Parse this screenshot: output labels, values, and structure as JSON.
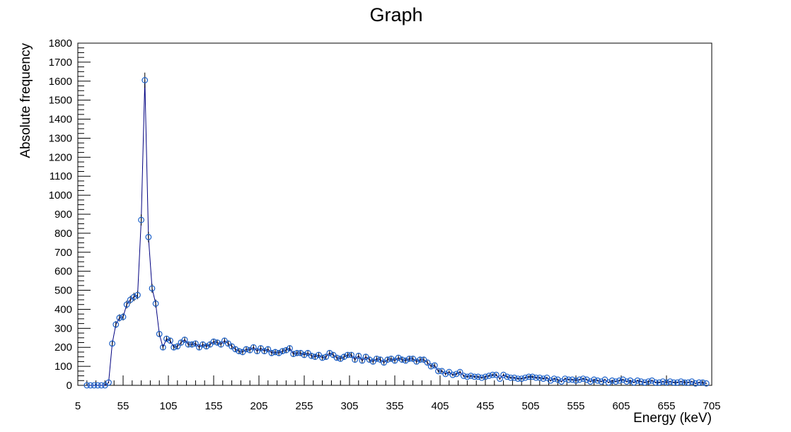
{
  "chart_data": {
    "type": "scatter",
    "title": "Graph",
    "x_label": "Energy (keV)",
    "y_label": "Absolute frequency",
    "line_color": "#000080",
    "marker_color": "#1a5fc8",
    "error_color": "#000000",
    "xlim": [
      5,
      705
    ],
    "ylim": [
      0,
      1800
    ],
    "xticks": [
      5,
      55,
      105,
      155,
      205,
      255,
      305,
      355,
      405,
      455,
      505,
      555,
      605,
      655,
      705
    ],
    "yticks": [
      0,
      100,
      200,
      300,
      400,
      500,
      600,
      700,
      800,
      900,
      1000,
      1100,
      1200,
      1300,
      1400,
      1500,
      1600,
      1700,
      1800
    ],
    "x": [
      15,
      19,
      23,
      27,
      31,
      35,
      39,
      43,
      47,
      51,
      55,
      59,
      63,
      67,
      71,
      75,
      79,
      83,
      87,
      91,
      95,
      99,
      103,
      107,
      111,
      115,
      119,
      123,
      127,
      131,
      135,
      139,
      143,
      147,
      151,
      155,
      159,
      163,
      167,
      171,
      175,
      179,
      183,
      187,
      191,
      195,
      199,
      203,
      207,
      211,
      215,
      219,
      223,
      227,
      231,
      235,
      239,
      243,
      247,
      251,
      255,
      259,
      263,
      267,
      271,
      275,
      279,
      283,
      287,
      291,
      295,
      299,
      303,
      307,
      311,
      315,
      319,
      323,
      327,
      331,
      335,
      339,
      343,
      347,
      351,
      355,
      359,
      363,
      367,
      371,
      375,
      379,
      383,
      387,
      391,
      395,
      399,
      403,
      407,
      411,
      415,
      419,
      423,
      427,
      431,
      435,
      439,
      443,
      447,
      451,
      455,
      459,
      463,
      467,
      471,
      475,
      479,
      483,
      487,
      491,
      495,
      499,
      503,
      507,
      511,
      515,
      519,
      523,
      527,
      531,
      535,
      539,
      543,
      547,
      551,
      555,
      559,
      563,
      567,
      571,
      575,
      579,
      583,
      587,
      591,
      595,
      599,
      603,
      607,
      611,
      615,
      619,
      623,
      627,
      631,
      635,
      639,
      643,
      647,
      651,
      655,
      659,
      663,
      667,
      671,
      675,
      679,
      683,
      687,
      691,
      695,
      699
    ],
    "values": [
      0,
      0,
      0,
      0,
      0,
      0,
      15,
      220,
      320,
      355,
      360,
      425,
      450,
      465,
      475,
      870,
      1605,
      780,
      510,
      430,
      270,
      200,
      245,
      235,
      200,
      205,
      225,
      240,
      215,
      215,
      220,
      200,
      215,
      205,
      215,
      230,
      225,
      215,
      235,
      220,
      205,
      190,
      180,
      175,
      190,
      185,
      200,
      180,
      195,
      180,
      190,
      170,
      175,
      170,
      180,
      185,
      195,
      165,
      170,
      170,
      160,
      170,
      155,
      150,
      160,
      145,
      150,
      170,
      160,
      145,
      140,
      150,
      160,
      160,
      135,
      155,
      130,
      150,
      135,
      125,
      140,
      135,
      120,
      135,
      140,
      130,
      145,
      135,
      130,
      140,
      140,
      125,
      135,
      135,
      120,
      100,
      105,
      75,
      75,
      60,
      70,
      55,
      60,
      70,
      50,
      45,
      50,
      45,
      45,
      40,
      45,
      50,
      55,
      55,
      35,
      55,
      45,
      40,
      40,
      35,
      35,
      40,
      45,
      45,
      40,
      40,
      35,
      40,
      25,
      35,
      30,
      20,
      35,
      30,
      30,
      25,
      30,
      35,
      30,
      20,
      30,
      25,
      20,
      30,
      15,
      25,
      20,
      25,
      30,
      20,
      25,
      15,
      25,
      20,
      15,
      20,
      25,
      15,
      15,
      20,
      15,
      20,
      15,
      15,
      20,
      15,
      15,
      20,
      10,
      15,
      15,
      10
    ],
    "errors": [
      0,
      0,
      0,
      0,
      0,
      0,
      4,
      15,
      18,
      19,
      19,
      21,
      21,
      22,
      22,
      29,
      40,
      28,
      23,
      21,
      16,
      14,
      16,
      15,
      14,
      14,
      15,
      15,
      15,
      15,
      15,
      14,
      15,
      14,
      15,
      15,
      15,
      15,
      15,
      15,
      14,
      14,
      13,
      13,
      14,
      14,
      14,
      13,
      14,
      13,
      14,
      13,
      13,
      13,
      13,
      14,
      14,
      13,
      13,
      13,
      13,
      13,
      12,
      12,
      13,
      12,
      12,
      13,
      13,
      12,
      12,
      12,
      13,
      13,
      12,
      12,
      11,
      12,
      12,
      11,
      12,
      12,
      11,
      12,
      12,
      11,
      12,
      12,
      11,
      12,
      12,
      11,
      12,
      12,
      11,
      10,
      10,
      9,
      9,
      8,
      8,
      7,
      8,
      8,
      7,
      7,
      7,
      7,
      7,
      6,
      7,
      7,
      7,
      7,
      6,
      7,
      7,
      6,
      6,
      6,
      6,
      6,
      7,
      7,
      6,
      6,
      6,
      6,
      5,
      6,
      5,
      4,
      6,
      5,
      5,
      5,
      5,
      6,
      5,
      4,
      5,
      5,
      4,
      5,
      4,
      5,
      4,
      5,
      5,
      4,
      5,
      4,
      5,
      4,
      4,
      4,
      5,
      4,
      4,
      4,
      4,
      4,
      4,
      4,
      4,
      4,
      4,
      4,
      3,
      4,
      4,
      3
    ]
  }
}
